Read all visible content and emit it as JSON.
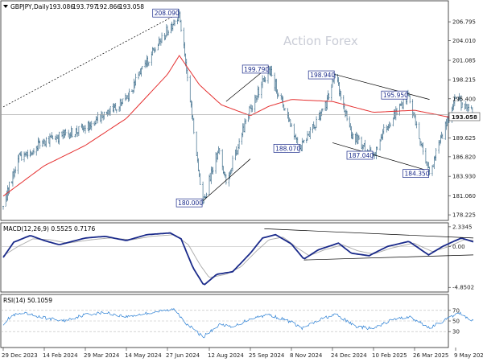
{
  "chart_data": [
    {
      "type": "candlestick",
      "title": "GBPJPY,Daily",
      "ohlc_header": [
        "193.086",
        "193.797",
        "192.866",
        "193.058"
      ],
      "watermark": "Action Forex",
      "last_price_label": "193.058",
      "y_ticks": [
        "206.795",
        "204.010",
        "201.085",
        "198.215",
        "195.400",
        "192.525",
        "189.625",
        "186.820",
        "183.930",
        "181.060",
        "178.225"
      ],
      "ylim": [
        177.4,
        209.9
      ],
      "x_ticks": [
        "29 Dec 2023",
        "14 Feb 2024",
        "29 Mar 2024",
        "14 May 2024",
        "27 Jun 2024",
        "12 Aug 2024",
        "25 Sep 2024",
        "8 Nov 2024",
        "24 Dec 2024",
        "10 Feb 2025",
        "26 Mar 2025",
        "9 May 2025"
      ],
      "anchors": [
        {
          "date": "29 Dec 2023",
          "price": 179.5
        },
        {
          "date": "15 Jan 2024",
          "price": 186.5
        },
        {
          "date": "14 Feb 2024",
          "price": 189.2
        },
        {
          "date": "29 Mar 2024",
          "price": 191.0
        },
        {
          "date": "14 May 2024",
          "price": 195.5
        },
        {
          "date": "10 Jun 2024",
          "price": 202.0
        },
        {
          "date": "10 Jul 2024",
          "price": 208.09
        },
        {
          "date": "5 Aug 2024",
          "price": 180.0
        },
        {
          "date": "22 Aug 2024",
          "price": 188.0
        },
        {
          "date": "30 Aug 2024",
          "price": 183.0
        },
        {
          "date": "25 Sep 2024",
          "price": 194.0
        },
        {
          "date": "15 Oct 2024",
          "price": 199.79
        },
        {
          "date": "8 Nov 2024",
          "price": 191.5
        },
        {
          "date": "18 Nov 2024",
          "price": 188.07
        },
        {
          "date": "15 Dec 2024",
          "price": 194.0
        },
        {
          "date": "27 Dec 2024",
          "price": 198.94
        },
        {
          "date": "15 Jan 2025",
          "price": 190.0
        },
        {
          "date": "10 Feb 2025",
          "price": 187.04
        },
        {
          "date": "20 Feb 2025",
          "price": 190.5
        },
        {
          "date": "19 Mar 2025",
          "price": 195.95
        },
        {
          "date": "11 Apr 2025",
          "price": 184.35
        },
        {
          "date": "9 May 2025",
          "price": 195.6
        },
        {
          "date": "19 May 2025",
          "price": 194.0
        },
        {
          "date": "28 May 2025",
          "price": 193.058
        }
      ],
      "moving_average_anchors": [
        {
          "date": "29 Dec 2023",
          "price": 181.0
        },
        {
          "date": "14 Feb 2024",
          "price": 185.5
        },
        {
          "date": "29 Mar 2024",
          "price": 188.5
        },
        {
          "date": "14 May 2024",
          "price": 192.5
        },
        {
          "date": "27 Jun 2024",
          "price": 199.0
        },
        {
          "date": "10 Jul 2024",
          "price": 201.8
        },
        {
          "date": "1 Aug 2024",
          "price": 197.5
        },
        {
          "date": "25 Aug 2024",
          "price": 194.5
        },
        {
          "date": "25 Sep 2024",
          "price": 192.9
        },
        {
          "date": "15 Oct 2024",
          "price": 194.3
        },
        {
          "date": "8 Nov 2024",
          "price": 195.3
        },
        {
          "date": "24 Dec 2024",
          "price": 195.0
        },
        {
          "date": "10 Feb 2025",
          "price": 193.4
        },
        {
          "date": "26 Mar 2025",
          "price": 193.7
        },
        {
          "date": "9 May 2025",
          "price": 192.5
        },
        {
          "date": "28 May 2025",
          "price": 193.1
        }
      ],
      "annotations": [
        {
          "text": "208.090",
          "date": "10 Jul 2024",
          "price": 208.09
        },
        {
          "text": "180.000",
          "date": "5 Aug 2024",
          "price": 180.0
        },
        {
          "text": "199.790",
          "date": "15 Oct 2024",
          "price": 199.79
        },
        {
          "text": "188.070",
          "date": "18 Nov 2024",
          "price": 188.07
        },
        {
          "text": "198.940",
          "date": "27 Dec 2024",
          "price": 198.94
        },
        {
          "text": "187.040",
          "date": "10 Feb 2025",
          "price": 187.04
        },
        {
          "text": "195.950",
          "date": "19 Mar 2025",
          "price": 195.95
        },
        {
          "text": "184.350",
          "date": "11 Apr 2025",
          "price": 184.35
        }
      ],
      "trendlines": [
        {
          "style": "dotted",
          "from": {
            "date": "29 Dec 2023",
            "price": 194.2
          },
          "to": {
            "date": "10 Jul 2024",
            "price": 208.09
          }
        },
        {
          "style": "solid",
          "from": {
            "date": "30 Aug 2024",
            "price": 195.0
          },
          "to": {
            "date": "15 Oct 2024",
            "price": 200.2
          }
        },
        {
          "style": "solid",
          "from": {
            "date": "5 Aug 2024",
            "price": 180.3
          },
          "to": {
            "date": "25 Sep 2024",
            "price": 186.5
          }
        },
        {
          "style": "solid",
          "from": {
            "date": "27 Dec 2024",
            "price": 199.0
          },
          "to": {
            "date": "11 Apr 2025",
            "price": 195.3
          }
        },
        {
          "style": "solid",
          "from": {
            "date": "24 Dec 2024",
            "price": 188.9
          },
          "to": {
            "date": "11 Apr 2025",
            "price": 184.7
          }
        }
      ],
      "colors": {
        "candles": "#3f6e8c",
        "moving_average": "#e53030",
        "annotation": "#1a2a8a",
        "trendline": "#000000"
      }
    },
    {
      "type": "line",
      "title": "MACD(12,26,9) 0.5525 0.7176",
      "y_ticks": [
        "2.3345",
        "0.00",
        "-4.8502"
      ],
      "ylim": [
        -5.4,
        2.8
      ],
      "reference_line": 0,
      "series": [
        {
          "anchors": [
            {
              "date": "29 Dec 2023",
              "value": -1.3
            },
            {
              "date": "10 Jan 2024",
              "value": 0.5
            },
            {
              "date": "29 Jan 2024",
              "value": 1.3
            },
            {
              "date": "14 Feb 2024",
              "value": 0.7
            },
            {
              "date": "1 Mar 2024",
              "value": 0.2
            },
            {
              "date": "29 Mar 2024",
              "value": 1.0
            },
            {
              "date": "20 Apr 2024",
              "value": 1.2
            },
            {
              "date": "14 May 2024",
              "value": 0.7
            },
            {
              "date": "5 Jun 2024",
              "value": 1.4
            },
            {
              "date": "30 Jun 2024",
              "value": 1.6
            },
            {
              "date": "12 Jul 2024",
              "value": 0.9
            },
            {
              "date": "25 Jul 2024",
              "value": -2.5
            },
            {
              "date": "6 Aug 2024",
              "value": -4.6
            },
            {
              "date": "20 Aug 2024",
              "value": -3.3
            },
            {
              "date": "6 Sep 2024",
              "value": -3.0
            },
            {
              "date": "25 Sep 2024",
              "value": -0.8
            },
            {
              "date": "8 Oct 2024",
              "value": 1.0
            },
            {
              "date": "22 Oct 2024",
              "value": 1.4
            },
            {
              "date": "8 Nov 2024",
              "value": 0.3
            },
            {
              "date": "22 Nov 2024",
              "value": -1.5
            },
            {
              "date": "8 Dec 2024",
              "value": -0.4
            },
            {
              "date": "31 Dec 2024",
              "value": 0.4
            },
            {
              "date": "15 Jan 2025",
              "value": -0.8
            },
            {
              "date": "5 Feb 2025",
              "value": -1.1
            },
            {
              "date": "25 Feb 2025",
              "value": 0.0
            },
            {
              "date": "20 Mar 2025",
              "value": 0.6
            },
            {
              "date": "10 Apr 2025",
              "value": -1.0
            },
            {
              "date": "25 Apr 2025",
              "value": 0.0
            },
            {
              "date": "15 May 2025",
              "value": 1.0
            },
            {
              "date": "28 May 2025",
              "value": 0.55
            }
          ],
          "color": "#1a2a8a"
        },
        {
          "name": "signal",
          "anchors": [
            {
              "date": "29 Dec 2023",
              "value": -1.1
            },
            {
              "date": "15 Jan 2024",
              "value": 0.0
            },
            {
              "date": "1 Feb 2024",
              "value": 0.9
            },
            {
              "date": "20 Feb 2024",
              "value": 0.8
            },
            {
              "date": "10 Mar 2024",
              "value": 0.4
            },
            {
              "date": "5 Apr 2024",
              "value": 0.8
            },
            {
              "date": "25 Apr 2024",
              "value": 1.0
            },
            {
              "date": "20 May 2024",
              "value": 0.8
            },
            {
              "date": "10 Jun 2024",
              "value": 1.2
            },
            {
              "date": "5 Jul 2024",
              "value": 1.4
            },
            {
              "date": "20 Jul 2024",
              "value": 0.2
            },
            {
              "date": "2 Aug 2024",
              "value": -2.2
            },
            {
              "date": "12 Aug 2024",
              "value": -3.7
            },
            {
              "date": "30 Aug 2024",
              "value": -3.3
            },
            {
              "date": "15 Sep 2024",
              "value": -2.4
            },
            {
              "date": "1 Oct 2024",
              "value": -0.6
            },
            {
              "date": "15 Oct 2024",
              "value": 0.8
            },
            {
              "date": "30 Oct 2024",
              "value": 1.1
            },
            {
              "date": "15 Nov 2024",
              "value": -0.2
            },
            {
              "date": "28 Nov 2024",
              "value": -1.1
            },
            {
              "date": "15 Dec 2024",
              "value": -0.4
            },
            {
              "date": "5 Jan 2025",
              "value": 0.2
            },
            {
              "date": "22 Jan 2025",
              "value": -0.5
            },
            {
              "date": "10 Feb 2025",
              "value": -0.9
            },
            {
              "date": "1 Mar 2025",
              "value": -0.2
            },
            {
              "date": "25 Mar 2025",
              "value": 0.4
            },
            {
              "date": "14 Apr 2025",
              "value": -0.6
            },
            {
              "date": "2 May 2025",
              "value": 0.0
            },
            {
              "date": "18 May 2025",
              "value": 0.8
            },
            {
              "date": "28 May 2025",
              "value": 0.72
            }
          ],
          "color": "#a9a9a9"
        }
      ],
      "trendlines": [
        {
          "from": {
            "date": "10 Oct 2024",
            "value": 2.1
          },
          "to": {
            "date": "28 May 2025",
            "value": 1.0
          }
        },
        {
          "from": {
            "date": "22 Nov 2024",
            "value": -1.6
          },
          "to": {
            "date": "28 May 2025",
            "value": -1.0
          }
        }
      ]
    },
    {
      "type": "line",
      "title": "RSI(14) 50.1059",
      "y_ticks": [
        "70",
        "50",
        "30"
      ],
      "ylim": [
        0,
        100
      ],
      "levels": [
        70,
        50,
        30
      ],
      "series": [
        {
          "anchors": [
            {
              "date": "29 Dec 2023",
              "value": 45
            },
            {
              "date": "8 Jan 2024",
              "value": 60
            },
            {
              "date": "22 Jan 2024",
              "value": 64
            },
            {
              "date": "14 Feb 2024",
              "value": 56
            },
            {
              "date": "5 Mar 2024",
              "value": 50
            },
            {
              "date": "29 Mar 2024",
              "value": 62
            },
            {
              "date": "20 Apr 2024",
              "value": 66
            },
            {
              "date": "14 May 2024",
              "value": 58
            },
            {
              "date": "10 Jun 2024",
              "value": 66
            },
            {
              "date": "5 Jul 2024",
              "value": 72
            },
            {
              "date": "18 Jul 2024",
              "value": 45
            },
            {
              "date": "5 Aug 2024",
              "value": 20
            },
            {
              "date": "25 Aug 2024",
              "value": 45
            },
            {
              "date": "5 Sep 2024",
              "value": 37
            },
            {
              "date": "25 Sep 2024",
              "value": 55
            },
            {
              "date": "15 Oct 2024",
              "value": 62
            },
            {
              "date": "8 Nov 2024",
              "value": 48
            },
            {
              "date": "20 Nov 2024",
              "value": 36
            },
            {
              "date": "15 Dec 2024",
              "value": 56
            },
            {
              "date": "28 Dec 2024",
              "value": 62
            },
            {
              "date": "20 Jan 2025",
              "value": 40
            },
            {
              "date": "10 Feb 2025",
              "value": 35
            },
            {
              "date": "1 Mar 2025",
              "value": 52
            },
            {
              "date": "20 Mar 2025",
              "value": 58
            },
            {
              "date": "11 Apr 2025",
              "value": 37
            },
            {
              "date": "28 Apr 2025",
              "value": 52
            },
            {
              "date": "13 May 2025",
              "value": 65
            },
            {
              "date": "28 May 2025",
              "value": 50
            }
          ],
          "color": "#2a7fd4"
        }
      ]
    }
  ]
}
